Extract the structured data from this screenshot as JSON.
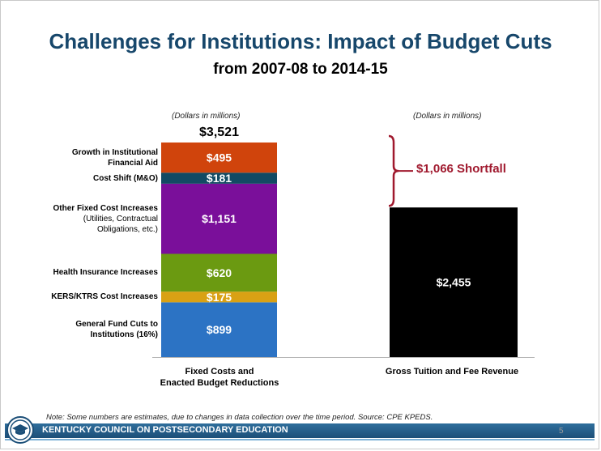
{
  "slide": {
    "title": "Challenges for Institutions: Impact of Budget Cuts",
    "subtitle": "from 2007-08 to 2014-15",
    "note": "Note: Some numbers are estimates, due to changes in data collection over the time period. Source: CPE KPEDS.",
    "footer": "KENTUCKY COUNCIL ON POSTSECONDARY EDUCATION",
    "page_number": "5",
    "logo_icon": "graduation-cap-seal-icon"
  },
  "chart_data": {
    "type": "bar",
    "stacked": true,
    "unit_left": "(Dollars in millions)",
    "unit_right": "(Dollars in millions)",
    "categories": [
      "Fixed Costs and Enacted Budget Reductions",
      "Gross Tuition and Fee Revenue"
    ],
    "category_labels": [
      [
        "Fixed Costs and",
        "Enacted Budget Reductions"
      ],
      [
        "Gross Tuition and Fee Revenue"
      ]
    ],
    "ylim": [
      0,
      3521
    ],
    "grid": false,
    "total_label": "$3,521",
    "segments": [
      {
        "name": "General Fund Cuts to Institutions (16%)",
        "label_lines": [
          "General Fund Cuts to",
          "Institutions (16%)"
        ],
        "value": 899,
        "value_label": "$899",
        "color": "#2c73c4"
      },
      {
        "name": "KERS/KTRS Cost Increases",
        "label_lines": [
          "KERS/KTRS Cost Increases"
        ],
        "value": 175,
        "value_label": "$175",
        "color": "#d9a114"
      },
      {
        "name": "Health Insurance Increases",
        "label_lines": [
          "Health Insurance Increases"
        ],
        "value": 620,
        "value_label": "$620",
        "color": "#6b9a11"
      },
      {
        "name": "Other Fixed Cost Increases",
        "label_lines": [
          "Other Fixed Cost Increases",
          "(Utilities, Contractual",
          "Obligations, etc.)"
        ],
        "value": 1151,
        "value_label": "$1,151",
        "color": "#7a0f9a"
      },
      {
        "name": "Cost Shift (M&O)",
        "label_lines": [
          "Cost Shift (M&O)"
        ],
        "value": 181,
        "value_label": "$181",
        "color": "#124a63"
      },
      {
        "name": "Growth in Institutional Financial Aid",
        "label_lines": [
          "Growth in Institutional",
          "Financial Aid"
        ],
        "value": 495,
        "value_label": "$495",
        "color": "#d0440c"
      }
    ],
    "right_bar": {
      "value": 2455,
      "value_label": "$2,455",
      "color": "#000000"
    },
    "annotation": "$1,066 Shortfall",
    "annotation_color": "#a0192e"
  }
}
